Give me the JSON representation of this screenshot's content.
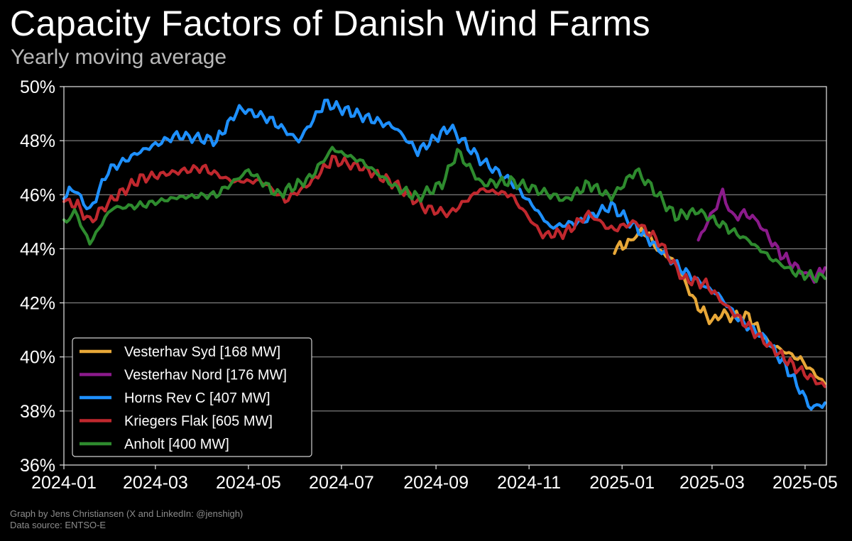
{
  "title": "Capacity Factors of Danish Wind Farms",
  "subtitle": "Yearly moving average",
  "footer": {
    "credit": "Graph by Jens Christiansen (X and LinkedIn: @jenshigh)",
    "source": "Data source: ENTSO-E"
  },
  "chart_data": {
    "type": "line",
    "x_axis": {
      "type": "date",
      "range": [
        "2024-01-01",
        "2025-05-15"
      ],
      "ticks": [
        "2024-01-01",
        "2024-03-01",
        "2024-05-01",
        "2024-07-01",
        "2024-09-01",
        "2024-11-01",
        "2025-01-01",
        "2025-03-01",
        "2025-05-01"
      ],
      "tick_labels": [
        "2024-01",
        "2024-03",
        "2024-05",
        "2024-07",
        "2024-09",
        "2024-11",
        "2025-01",
        "2025-03",
        "2025-05"
      ]
    },
    "y_axis": {
      "range": [
        36,
        50
      ],
      "ticks": [
        36,
        38,
        40,
        42,
        44,
        46,
        48,
        50
      ],
      "tick_labels": [
        "36%",
        "38%",
        "40%",
        "42%",
        "44%",
        "46%",
        "48%",
        "50%"
      ]
    },
    "grid": "horizontal",
    "legend_position": "bottom-left",
    "series": [
      {
        "name": "Vesterhav Syd [168 MW]",
        "color": "#e8a838",
        "x": [
          "2024-12-27",
          "2025-01-05",
          "2025-01-12",
          "2025-01-17",
          "2025-01-24",
          "2025-02-05",
          "2025-02-18",
          "2025-03-01",
          "2025-03-07",
          "2025-03-13",
          "2025-03-25",
          "2025-04-07",
          "2025-04-28",
          "2025-05-14"
        ],
        "y": [
          44.0,
          44.2,
          44.6,
          44.6,
          44.0,
          43.5,
          42.0,
          41.3,
          41.6,
          41.5,
          41.5,
          40.5,
          39.9,
          39.0
        ]
      },
      {
        "name": "Vesterhav Nord [176 MW]",
        "color": "#8b1a8b",
        "x": [
          "2025-02-20",
          "2025-02-26",
          "2025-03-04",
          "2025-03-08",
          "2025-03-14",
          "2025-03-24",
          "2025-03-31",
          "2025-04-15",
          "2025-04-28",
          "2025-05-07",
          "2025-05-14"
        ],
        "y": [
          44.3,
          45.0,
          45.6,
          46.1,
          45.2,
          45.3,
          45.0,
          43.8,
          43.2,
          42.9,
          43.3
        ]
      },
      {
        "name": "Horns Rev C [407 MW]",
        "color": "#1e90ff",
        "x": [
          "2024-01-01",
          "2024-01-08",
          "2024-01-18",
          "2024-01-30",
          "2024-02-20",
          "2024-03-15",
          "2024-04-10",
          "2024-04-25",
          "2024-05-15",
          "2024-06-03",
          "2024-06-20",
          "2024-07-15",
          "2024-08-05",
          "2024-08-20",
          "2024-09-10",
          "2024-09-30",
          "2024-10-20",
          "2024-11-05",
          "2024-11-15",
          "2024-12-05",
          "2024-12-25",
          "2025-01-10",
          "2025-01-25",
          "2025-02-10",
          "2025-02-25",
          "2025-03-05",
          "2025-03-20",
          "2025-04-05",
          "2025-04-20",
          "2025-05-05",
          "2025-05-14"
        ],
        "y": [
          46.0,
          46.2,
          45.4,
          46.9,
          47.6,
          48.2,
          48.0,
          49.2,
          48.8,
          48.0,
          49.4,
          48.9,
          48.5,
          47.6,
          48.5,
          47.3,
          46.5,
          45.5,
          44.8,
          45.0,
          45.6,
          44.8,
          44.0,
          43.2,
          42.6,
          42.3,
          41.3,
          40.7,
          39.5,
          38.1,
          38.3
        ]
      },
      {
        "name": "Kriegers Flak [605 MW]",
        "color": "#c0282e",
        "x": [
          "2024-01-01",
          "2024-01-10",
          "2024-01-18",
          "2024-02-01",
          "2024-02-20",
          "2024-03-10",
          "2024-04-01",
          "2024-04-20",
          "2024-05-10",
          "2024-05-25",
          "2024-06-10",
          "2024-06-25",
          "2024-07-15",
          "2024-08-05",
          "2024-08-25",
          "2024-09-10",
          "2024-09-30",
          "2024-10-20",
          "2024-11-10",
          "2024-11-25",
          "2024-12-10",
          "2024-12-25",
          "2025-01-10",
          "2025-01-25",
          "2025-02-10",
          "2025-02-25",
          "2025-03-10",
          "2025-03-25",
          "2025-04-10",
          "2025-04-25",
          "2025-05-14"
        ],
        "y": [
          45.8,
          45.6,
          45.0,
          45.8,
          46.6,
          46.8,
          47.0,
          46.5,
          46.5,
          45.8,
          46.4,
          47.3,
          47.0,
          46.4,
          45.5,
          45.3,
          46.2,
          46.0,
          44.5,
          44.6,
          45.3,
          44.7,
          45.0,
          44.3,
          42.9,
          42.7,
          41.9,
          41.1,
          40.3,
          39.6,
          38.9
        ]
      },
      {
        "name": "Anholt [400 MW]",
        "color": "#2e8b2e",
        "x": [
          "2024-01-01",
          "2024-01-08",
          "2024-01-18",
          "2024-02-01",
          "2024-02-20",
          "2024-03-15",
          "2024-04-10",
          "2024-05-01",
          "2024-05-20",
          "2024-06-10",
          "2024-06-25",
          "2024-07-15",
          "2024-08-05",
          "2024-08-20",
          "2024-09-05",
          "2024-09-15",
          "2024-10-01",
          "2024-10-20",
          "2024-11-05",
          "2024-11-25",
          "2024-12-10",
          "2024-12-25",
          "2025-01-10",
          "2025-01-20",
          "2025-02-05",
          "2025-02-20",
          "2025-03-10",
          "2025-03-25",
          "2025-04-10",
          "2025-04-25",
          "2025-05-14"
        ],
        "y": [
          44.9,
          45.4,
          44.2,
          45.5,
          45.6,
          45.9,
          46.0,
          46.9,
          46.0,
          46.6,
          47.7,
          47.2,
          46.3,
          45.9,
          46.4,
          47.6,
          46.4,
          46.5,
          46.2,
          45.8,
          46.4,
          45.9,
          46.9,
          46.3,
          45.2,
          45.4,
          44.8,
          44.3,
          43.6,
          43.1,
          42.9
        ]
      }
    ]
  }
}
